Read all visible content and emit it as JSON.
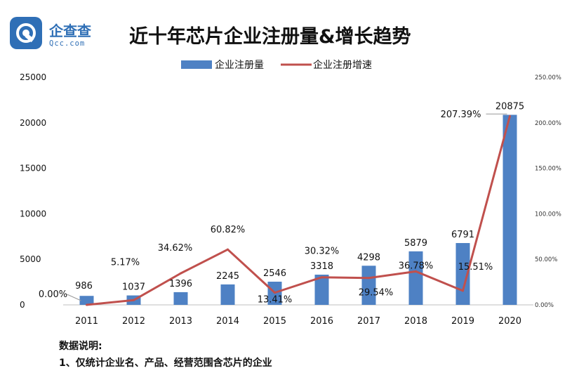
{
  "brand": {
    "name": "企查查",
    "domain": "Qcc.com",
    "logo_color": "#2f6fb6"
  },
  "title": "近十年芯片企业注册量&增长趋势",
  "notes": {
    "heading": "数据说明:",
    "lines": [
      "1、仅统计企业名、产品、经营范围含芯片的企业"
    ]
  },
  "chart_data": {
    "type": "bar",
    "categories": [
      "2011",
      "2012",
      "2013",
      "2014",
      "2015",
      "2016",
      "2017",
      "2018",
      "2019",
      "2020"
    ],
    "series": [
      {
        "name": "企业注册量",
        "type": "bar",
        "axis": "left",
        "color": "#4e81c4",
        "values": [
          986,
          1037,
          1396,
          2245,
          2546,
          3318,
          4298,
          5879,
          6791,
          20875
        ],
        "labels": [
          "986",
          "1037",
          "1396",
          "2245",
          "2546",
          "3318",
          "4298",
          "5879",
          "6791",
          "20875"
        ]
      },
      {
        "name": "企业注册增速",
        "type": "line",
        "axis": "right",
        "color": "#c0504d",
        "values": [
          0.0,
          5.17,
          34.62,
          60.82,
          13.41,
          30.32,
          29.54,
          36.78,
          15.51,
          207.39
        ],
        "labels": [
          "0.00%",
          "5.17%",
          "34.62%",
          "60.82%",
          "13.41%",
          "30.32%",
          "29.54%",
          "36.78%",
          "15.51%",
          "207.39%"
        ]
      }
    ],
    "y_left": {
      "range": [
        0,
        25000
      ],
      "ticks": [
        0,
        5000,
        10000,
        15000,
        20000,
        25000
      ],
      "tick_labels": [
        "0",
        "5000",
        "10000",
        "15000",
        "20000",
        "25000"
      ]
    },
    "y_right": {
      "range": [
        0,
        250
      ],
      "ticks": [
        0,
        50,
        100,
        150,
        200,
        250
      ],
      "tick_labels": [
        "0.00%",
        "50.00%",
        "100.00%",
        "150.00%",
        "200.00%",
        "250.00%"
      ]
    },
    "grid": false,
    "legend_position": "top-center"
  }
}
